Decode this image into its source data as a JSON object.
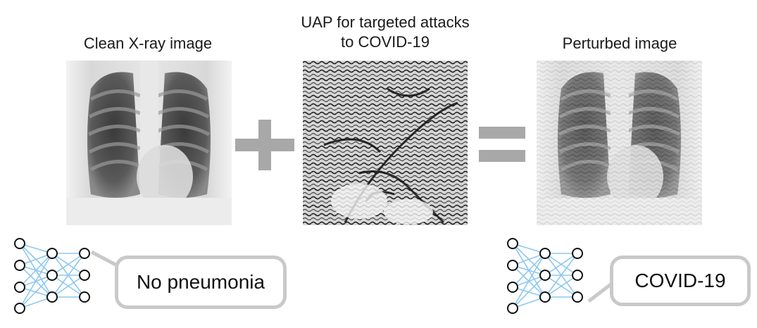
{
  "titles": {
    "clean": "Clean X-ray image",
    "uap": "UAP for targeted attacks\nto COVID-19",
    "perturbed": "Perturbed image"
  },
  "operators": {
    "plus": "+",
    "equals": "="
  },
  "predictions": {
    "clean": "No pneumonia",
    "perturbed": "COVID-19"
  },
  "colors": {
    "operator_gray": "#a8a8a8",
    "bubble_border": "#c9c9c9",
    "network_edge": "#8cc8f0",
    "network_node": "#111111"
  },
  "icons": [
    "neural-network-icon",
    "plus-icon",
    "equals-icon"
  ]
}
